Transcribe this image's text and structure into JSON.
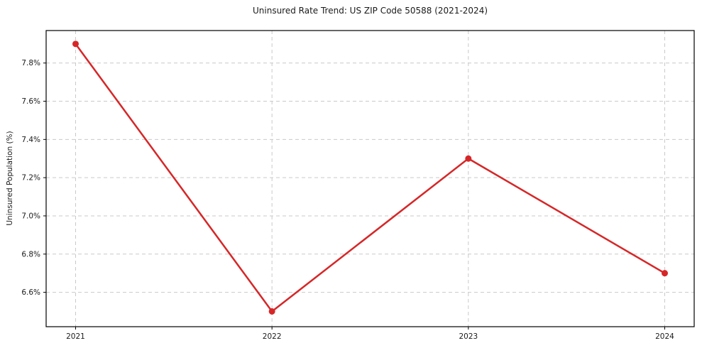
{
  "figure": {
    "background": "#ffffff"
  },
  "chart_data": {
    "type": "line",
    "title": "Uninsured Rate Trend: US ZIP Code 50588 (2021-2024)",
    "xlabel": "",
    "ylabel": "Uninsured Population (%)",
    "x": [
      2021,
      2022,
      2023,
      2024
    ],
    "xtick_labels": [
      "2021",
      "2022",
      "2023",
      "2024"
    ],
    "values": [
      7.9,
      6.5,
      7.3,
      6.7
    ],
    "value_unit": "%",
    "xlim": [
      2020.85,
      2024.15
    ],
    "ylim": [
      6.42,
      7.97
    ],
    "yticks": [
      6.6,
      6.8,
      7.0,
      7.2,
      7.4,
      7.6,
      7.8
    ],
    "ytick_labels": [
      "6.6%",
      "6.8%",
      "7.0%",
      "7.2%",
      "7.4%",
      "7.6%",
      "7.8%"
    ],
    "grid": true,
    "grid_style": "dashed",
    "legend": "none",
    "line_color": "#d62728",
    "marker": "circle",
    "marker_color": "#d62728",
    "grid_color": "#c9c9c9",
    "axis_color": "#000000",
    "text_color": "#1a1a1a"
  }
}
